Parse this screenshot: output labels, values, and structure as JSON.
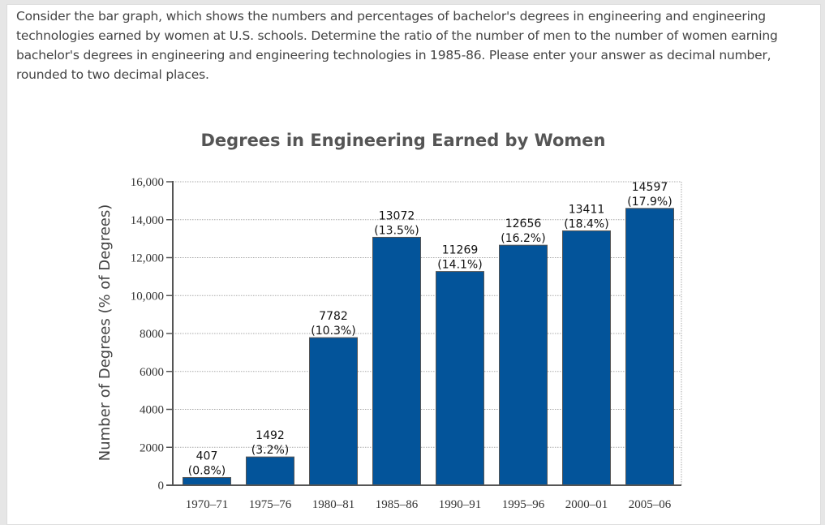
{
  "question": "Consider the bar graph, which shows the numbers and percentages of bachelor's degrees in engineering and engineering technologies earned by women at U.S. schools. Determine the ratio of the number of men to the number of women earning bachelor's degrees in engineering and engineering technologies in 1985-86. Please enter your answer as decimal number, rounded to two decimal places.",
  "chart_data": {
    "type": "bar",
    "title": "Degrees in Engineering Earned by Women",
    "xlabel": "",
    "ylabel": "Number of Degrees (% of Degrees)",
    "ylim": [
      0,
      16000
    ],
    "yticks": [
      "0",
      "2000",
      "4000",
      "6000",
      "8000",
      "10,000",
      "12,000",
      "14,000",
      "16,000"
    ],
    "ytick_values": [
      0,
      2000,
      4000,
      6000,
      8000,
      10000,
      12000,
      14000,
      16000
    ],
    "grid": true,
    "bar_color": "#03549a",
    "categories": [
      "1970–71",
      "1975–76",
      "1980–81",
      "1985–86",
      "1990–91",
      "1995–96",
      "2000–01",
      "2005–06"
    ],
    "values": [
      407,
      1492,
      7782,
      13072,
      11269,
      12656,
      13411,
      14597
    ],
    "value_labels": [
      "407",
      "1492",
      "7782",
      "13072",
      "11269",
      "12656",
      "13411",
      "14597"
    ],
    "percent_labels": [
      "(0.8%)",
      "(3.2%)",
      "(10.3%)",
      "(13.5%)",
      "(14.1%)",
      "(16.2%)",
      "(18.4%)",
      "(17.9%)"
    ]
  }
}
